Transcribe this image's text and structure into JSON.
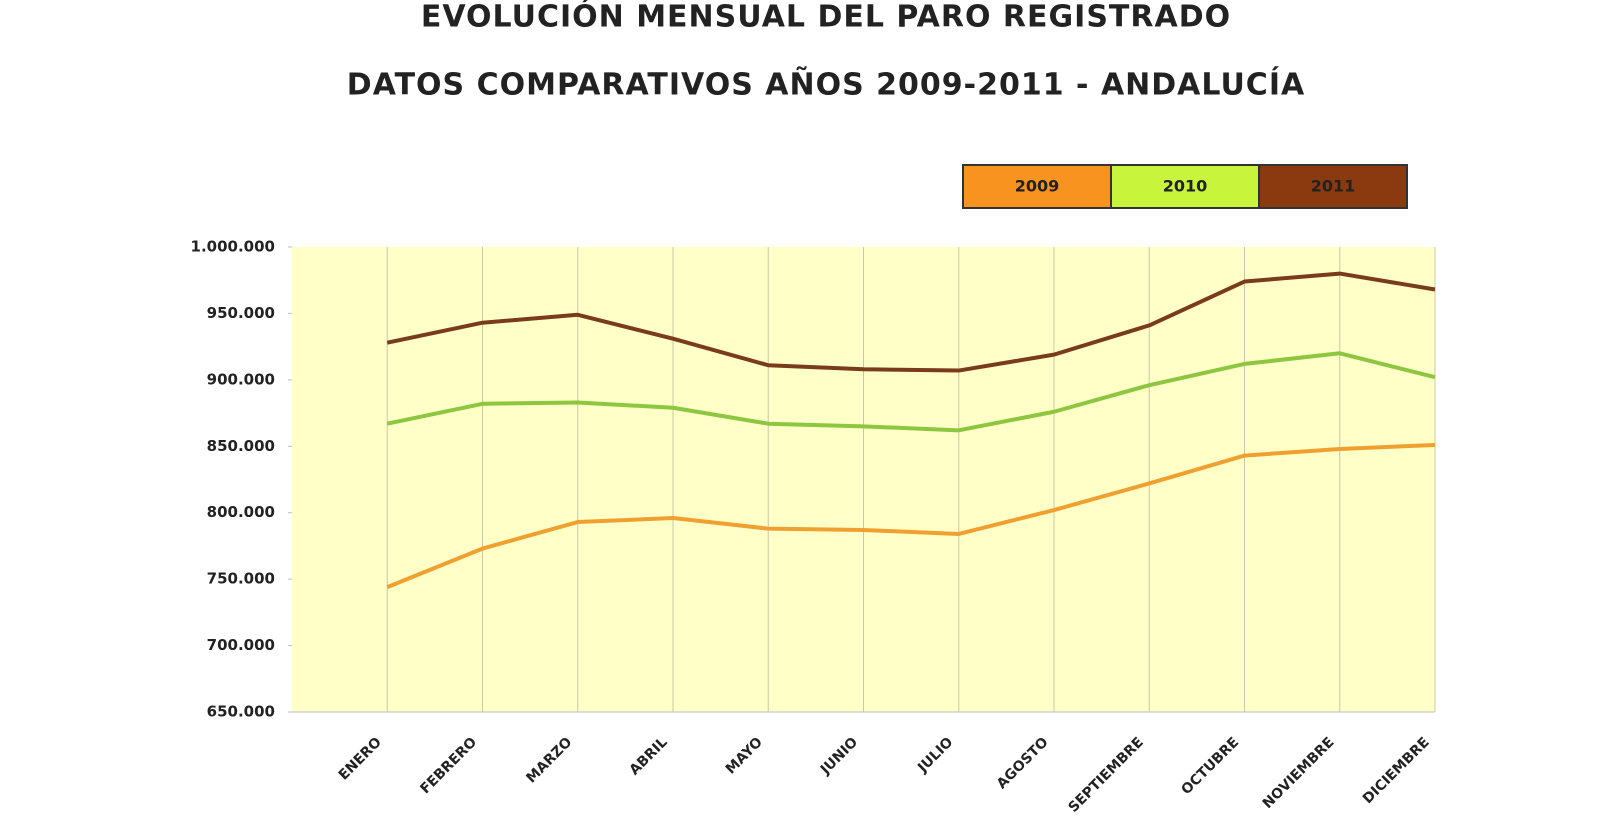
{
  "chart_data": {
    "type": "line",
    "title": "EVOLUCIÓN MENSUAL DEL PARO REGISTRADO",
    "subtitle": "DATOS COMPARATIVOS AÑOS 2009-2011 - ANDALUCÍA",
    "categories": [
      "ENERO",
      "FEBRERO",
      "MARZO",
      "ABRIL",
      "MAYO",
      "JUNIO",
      "JULIO",
      "AGOSTO",
      "SEPTIEMBRE",
      "OCTUBRE",
      "NOVIEMBRE",
      "DICIEMBRE"
    ],
    "series": [
      {
        "name": "2009",
        "color": "#f0a030",
        "legend_color": "#f7931e",
        "values": [
          744000,
          773000,
          793000,
          796000,
          788000,
          787000,
          784000,
          802000,
          822000,
          843000,
          848000,
          851000
        ]
      },
      {
        "name": "2010",
        "color": "#8dc63f",
        "legend_color": "#c8f53c",
        "values": [
          867000,
          882000,
          883000,
          879000,
          867000,
          865000,
          862000,
          876000,
          896000,
          912000,
          920000,
          902000
        ]
      },
      {
        "name": "2011",
        "color": "#7a3b1a",
        "legend_color": "#8b3a0f",
        "values": [
          928000,
          943000,
          949000,
          931000,
          911000,
          908000,
          907000,
          919000,
          941000,
          974000,
          980000,
          968000
        ]
      }
    ],
    "ylim": [
      650000,
      1000000
    ],
    "yticks": [
      {
        "value": 650000,
        "label": "650.000"
      },
      {
        "value": 700000,
        "label": "700.000"
      },
      {
        "value": 750000,
        "label": "750.000"
      },
      {
        "value": 800000,
        "label": "800.000"
      },
      {
        "value": 850000,
        "label": "850.000"
      },
      {
        "value": 900000,
        "label": "900.000"
      },
      {
        "value": 950000,
        "label": "950.000"
      },
      {
        "value": 1000000,
        "label": "1.000.000"
      }
    ],
    "legend_position": "top right"
  }
}
